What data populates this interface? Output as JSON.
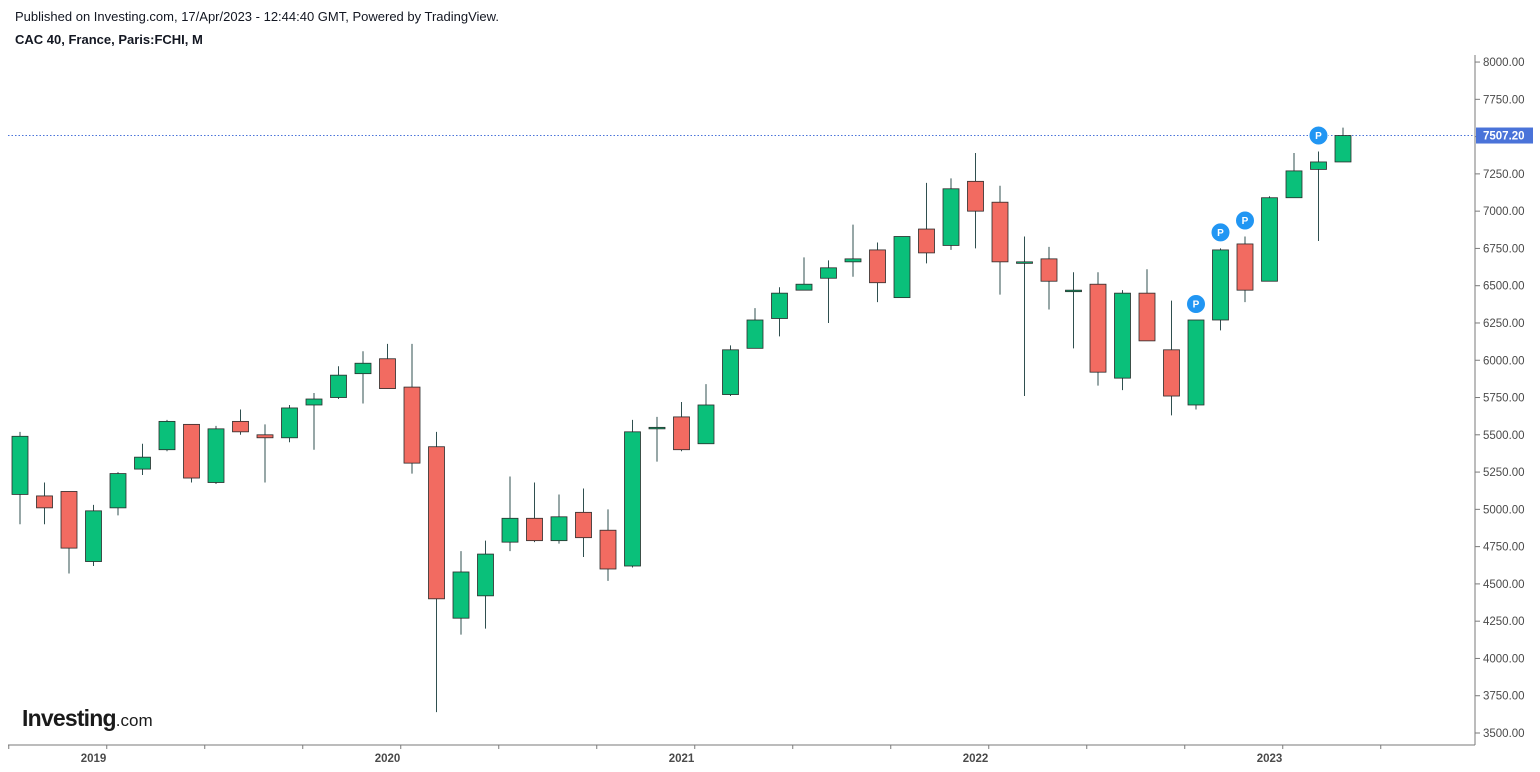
{
  "header": {
    "published": "Published on Investing.com, 17/Apr/2023 - 12:44:40 GMT, Powered by TradingView.",
    "symbol": "CAC 40, France, Paris:FCHI, M"
  },
  "logo": {
    "main": "Investing",
    "suffix": ".com"
  },
  "colors": {
    "up": "#0ac07a",
    "down": "#f26b61",
    "wick": "#2f4f4f",
    "last_line": "#4a73d9",
    "badge": "#2196f3",
    "axis": "#4a4a4a"
  },
  "chart_data": {
    "type": "candlestick",
    "interval": "monthly",
    "ylim": [
      3400,
      8050
    ],
    "y_ticks": [
      "3500.00",
      "3750.00",
      "4000.00",
      "4250.00",
      "4500.00",
      "4750.00",
      "5000.00",
      "5250.00",
      "5500.00",
      "5750.00",
      "6000.00",
      "6250.00",
      "6500.00",
      "6750.00",
      "7000.00",
      "7250.00",
      "7500.00",
      "7750.00",
      "8000.00"
    ],
    "x_labels": [
      {
        "label": "2019",
        "index": 3
      },
      {
        "label": "2020",
        "index": 15
      },
      {
        "label": "2021",
        "index": 27
      },
      {
        "label": "2022",
        "index": 39
      },
      {
        "label": "2023",
        "index": 51
      }
    ],
    "last_price": "7507.20",
    "last_value": 7507.2,
    "p_markers": [
      48,
      49,
      50,
      53
    ],
    "candles": [
      {
        "o": 5100,
        "h": 5520,
        "l": 4900,
        "c": 5490
      },
      {
        "o": 5090,
        "h": 5180,
        "l": 4900,
        "c": 5010
      },
      {
        "o": 5120,
        "h": 5120,
        "l": 4570,
        "c": 4740
      },
      {
        "o": 4650,
        "h": 5030,
        "l": 4620,
        "c": 4990
      },
      {
        "o": 5010,
        "h": 5250,
        "l": 4960,
        "c": 5240
      },
      {
        "o": 5270,
        "h": 5440,
        "l": 5230,
        "c": 5350
      },
      {
        "o": 5400,
        "h": 5600,
        "l": 5390,
        "c": 5590
      },
      {
        "o": 5570,
        "h": 5570,
        "l": 5180,
        "c": 5210
      },
      {
        "o": 5180,
        "h": 5560,
        "l": 5170,
        "c": 5540
      },
      {
        "o": 5590,
        "h": 5670,
        "l": 5500,
        "c": 5520
      },
      {
        "o": 5500,
        "h": 5570,
        "l": 5180,
        "c": 5480
      },
      {
        "o": 5480,
        "h": 5700,
        "l": 5450,
        "c": 5680
      },
      {
        "o": 5700,
        "h": 5780,
        "l": 5400,
        "c": 5740
      },
      {
        "o": 5750,
        "h": 5960,
        "l": 5740,
        "c": 5900
      },
      {
        "o": 5910,
        "h": 6060,
        "l": 5710,
        "c": 5980
      },
      {
        "o": 6010,
        "h": 6110,
        "l": 5810,
        "c": 5810
      },
      {
        "o": 5820,
        "h": 6110,
        "l": 5240,
        "c": 5310
      },
      {
        "o": 5420,
        "h": 5520,
        "l": 3640,
        "c": 4400
      },
      {
        "o": 4270,
        "h": 4720,
        "l": 4160,
        "c": 4580
      },
      {
        "o": 4420,
        "h": 4790,
        "l": 4200,
        "c": 4700
      },
      {
        "o": 4780,
        "h": 5220,
        "l": 4720,
        "c": 4940
      },
      {
        "o": 4940,
        "h": 5180,
        "l": 4780,
        "c": 4790
      },
      {
        "o": 4790,
        "h": 5100,
        "l": 4770,
        "c": 4950
      },
      {
        "o": 4980,
        "h": 5140,
        "l": 4680,
        "c": 4810
      },
      {
        "o": 4860,
        "h": 5000,
        "l": 4520,
        "c": 4600
      },
      {
        "o": 4620,
        "h": 5600,
        "l": 4610,
        "c": 5520
      },
      {
        "o": 5540,
        "h": 5620,
        "l": 5320,
        "c": 5550
      },
      {
        "o": 5620,
        "h": 5720,
        "l": 5390,
        "c": 5400
      },
      {
        "o": 5440,
        "h": 5840,
        "l": 5440,
        "c": 5700
      },
      {
        "o": 5770,
        "h": 6100,
        "l": 5760,
        "c": 6070
      },
      {
        "o": 6080,
        "h": 6350,
        "l": 6080,
        "c": 6270
      },
      {
        "o": 6280,
        "h": 6490,
        "l": 6160,
        "c": 6450
      },
      {
        "o": 6470,
        "h": 6690,
        "l": 6470,
        "c": 6510
      },
      {
        "o": 6550,
        "h": 6670,
        "l": 6250,
        "c": 6620
      },
      {
        "o": 6660,
        "h": 6910,
        "l": 6560,
        "c": 6680
      },
      {
        "o": 6740,
        "h": 6790,
        "l": 6390,
        "c": 6520
      },
      {
        "o": 6420,
        "h": 6830,
        "l": 6420,
        "c": 6830
      },
      {
        "o": 6880,
        "h": 7190,
        "l": 6650,
        "c": 6720
      },
      {
        "o": 6770,
        "h": 7220,
        "l": 6740,
        "c": 7150
      },
      {
        "o": 7200,
        "h": 7390,
        "l": 6750,
        "c": 7000
      },
      {
        "o": 7060,
        "h": 7170,
        "l": 6440,
        "c": 6660
      },
      {
        "o": 6650,
        "h": 6830,
        "l": 5760,
        "c": 6660
      },
      {
        "o": 6680,
        "h": 6760,
        "l": 6340,
        "c": 6530
      },
      {
        "o": 6470,
        "h": 6590,
        "l": 6080,
        "c": 6470
      },
      {
        "o": 6510,
        "h": 6590,
        "l": 5830,
        "c": 5920
      },
      {
        "o": 5880,
        "h": 6470,
        "l": 5800,
        "c": 6450
      },
      {
        "o": 6450,
        "h": 6610,
        "l": 6130,
        "c": 6130
      },
      {
        "o": 6070,
        "h": 6400,
        "l": 5630,
        "c": 5760
      },
      {
        "o": 5700,
        "h": 6270,
        "l": 5670,
        "c": 6270
      },
      {
        "o": 6270,
        "h": 6750,
        "l": 6200,
        "c": 6740
      },
      {
        "o": 6780,
        "h": 6830,
        "l": 6390,
        "c": 6470
      },
      {
        "o": 6530,
        "h": 7100,
        "l": 6530,
        "c": 7090
      },
      {
        "o": 7090,
        "h": 7390,
        "l": 7090,
        "c": 7270
      },
      {
        "o": 7280,
        "h": 7400,
        "l": 6800,
        "c": 7330
      },
      {
        "o": 7330,
        "h": 7560,
        "l": 7330,
        "c": 7507.2
      }
    ]
  }
}
